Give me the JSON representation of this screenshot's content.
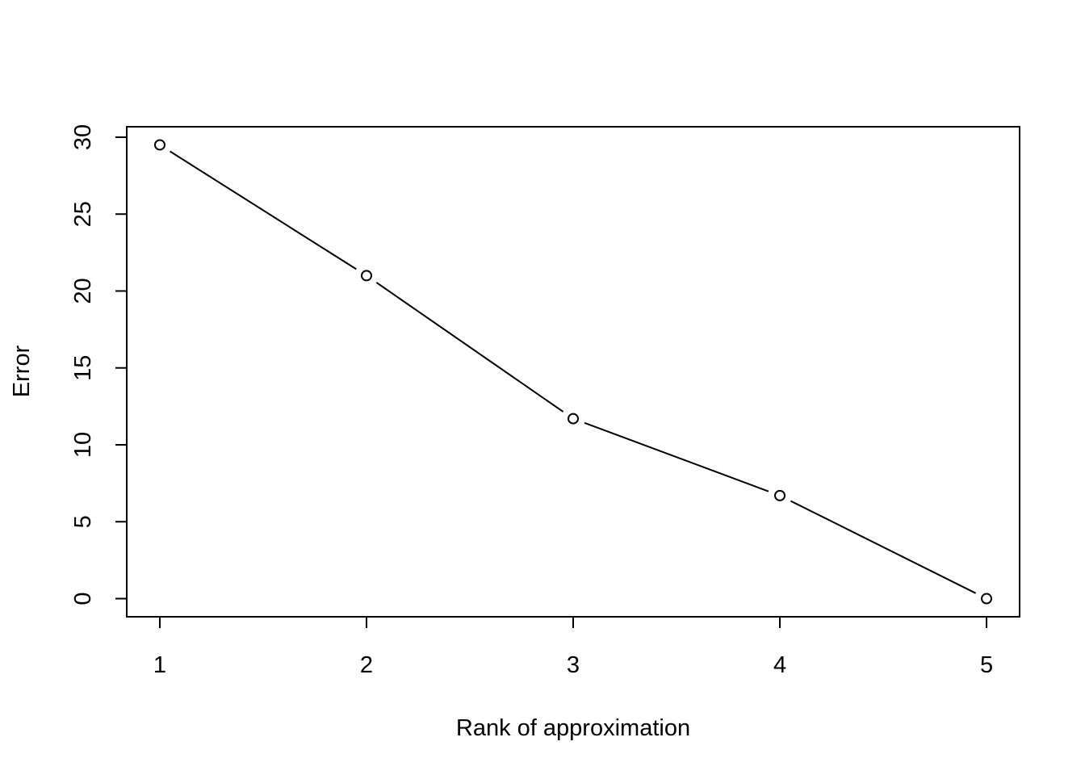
{
  "chart_data": {
    "type": "line",
    "title": "",
    "xlabel": "Rank of approximation",
    "ylabel": "Error",
    "x": [
      1,
      2,
      3,
      4,
      5
    ],
    "series": [
      {
        "values": [
          29.5,
          21.0,
          11.7,
          6.7,
          0.0
        ]
      }
    ],
    "x_ticks": [
      "1",
      "2",
      "3",
      "4",
      "5"
    ],
    "y_ticks": [
      "0",
      "5",
      "10",
      "15",
      "20",
      "25",
      "30"
    ],
    "xlim": [
      0.84,
      5.16
    ],
    "ylim": [
      -1.18,
      30.68
    ],
    "grid": false,
    "legend": "none",
    "marker": "open-circle",
    "line_color": "#000000",
    "background": "#ffffff"
  }
}
